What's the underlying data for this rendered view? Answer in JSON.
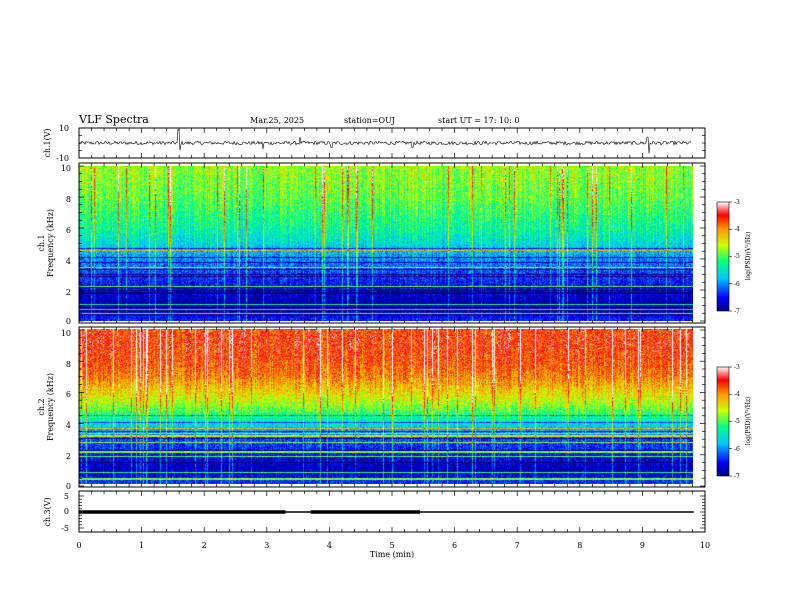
{
  "header": {
    "title": "VLF Spectra",
    "date": "Mar.25, 2025",
    "station": "station=OUJ",
    "start": "start  UT =   17: 10: 0"
  },
  "chart_data": [
    {
      "type": "line",
      "panel": "ch1-waveform",
      "ylabel": "ch.1(V)",
      "ylim": [
        -10,
        10
      ],
      "y_tick_labels": [
        "10",
        "-10"
      ],
      "xlim": [
        0,
        10
      ],
      "baseline": 0,
      "noise_amplitude": 1.2,
      "spikes": [
        {
          "x": 1.6,
          "y": 9
        },
        {
          "x": 1.62,
          "y": -5
        },
        {
          "x": 2.95,
          "y": -4
        },
        {
          "x": 3.55,
          "y": 4
        },
        {
          "x": 4.05,
          "y": -3
        },
        {
          "x": 5.35,
          "y": -3
        },
        {
          "x": 9.15,
          "y": -7
        },
        {
          "x": 9.12,
          "y": 4
        }
      ]
    },
    {
      "type": "heatmap",
      "panel": "ch1-spectrogram",
      "ylabel": "ch.1\nFrequency (kHz)",
      "ylim": [
        0,
        10
      ],
      "y_tick_labels": [
        "0",
        "2",
        "4",
        "6",
        "8",
        "10"
      ],
      "xlim": [
        0,
        10
      ],
      "colorbar": {
        "label": "log(PSD)(V²/Hz)",
        "range": [
          -7,
          -3
        ],
        "tick_labels": [
          "-3",
          "-4",
          "-5",
          "-6",
          "-7"
        ]
      },
      "level_profile": [
        {
          "f": 0,
          "v": -6.4
        },
        {
          "f": 1,
          "v": -6.9
        },
        {
          "f": 2,
          "v": -6.6
        },
        {
          "f": 3,
          "v": -6.3
        },
        {
          "f": 4,
          "v": -6.0
        },
        {
          "f": 5,
          "v": -5.6
        },
        {
          "f": 6,
          "v": -5.3
        },
        {
          "f": 7,
          "v": -5.1
        },
        {
          "f": 8,
          "v": -4.9
        },
        {
          "f": 9,
          "v": -4.8
        },
        {
          "f": 10,
          "v": -4.7
        }
      ]
    },
    {
      "type": "heatmap",
      "panel": "ch2-spectrogram",
      "ylabel": "ch.2\nFrequency (kHz)",
      "ylim": [
        0,
        10
      ],
      "y_tick_labels": [
        "0",
        "2",
        "4",
        "6",
        "8",
        "10"
      ],
      "xlim": [
        0,
        10
      ],
      "colorbar": {
        "label": "log(PSD)(V²/Hz)",
        "range": [
          -7,
          -3
        ],
        "tick_labels": [
          "-3",
          "-4",
          "-5",
          "-6",
          "-7"
        ]
      },
      "level_profile": [
        {
          "f": 0,
          "v": -6.3
        },
        {
          "f": 1,
          "v": -6.8
        },
        {
          "f": 2,
          "v": -6.5
        },
        {
          "f": 3,
          "v": -6.2
        },
        {
          "f": 4,
          "v": -5.5
        },
        {
          "f": 5,
          "v": -4.8
        },
        {
          "f": 6,
          "v": -4.3
        },
        {
          "f": 7,
          "v": -3.9
        },
        {
          "f": 8,
          "v": -3.7
        },
        {
          "f": 9,
          "v": -3.6
        },
        {
          "f": 10,
          "v": -3.6
        }
      ]
    },
    {
      "type": "line",
      "panel": "ch3-waveform",
      "ylabel": "ch.3(V)",
      "ylim": [
        -5,
        5
      ],
      "y_tick_labels": [
        "5",
        "0",
        "-5"
      ],
      "xlim": [
        0,
        10
      ],
      "xlabel": "Time  (min)",
      "x_tick_labels": [
        "0",
        "1",
        "2",
        "3",
        "4",
        "5",
        "6",
        "7",
        "8",
        "9",
        "10"
      ],
      "level": 0,
      "thick_segments": [
        [
          0,
          3.3
        ],
        [
          3.7,
          5.45
        ]
      ],
      "thin_segments": [
        [
          3.3,
          3.7
        ],
        [
          5.45,
          9.82
        ]
      ]
    }
  ]
}
